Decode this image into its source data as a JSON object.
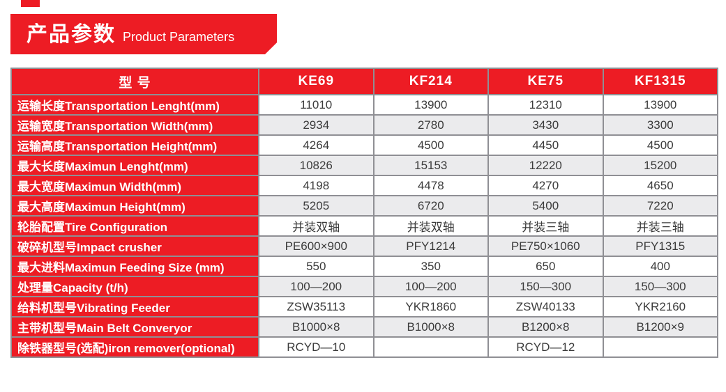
{
  "banner": {
    "title_zh": "产品参数",
    "title_en": "Product Parameters"
  },
  "table": {
    "header": {
      "model_label": "型 号",
      "columns": [
        "KE69",
        "KF214",
        "KE75",
        "KF1315"
      ]
    },
    "rows": [
      {
        "label": "运输长度Transportation Lenght(mm)",
        "values": [
          "11010",
          "13900",
          "12310",
          "13900"
        ]
      },
      {
        "label": "运输宽度Transportation Width(mm)",
        "values": [
          "2934",
          "2780",
          "3430",
          "3300"
        ]
      },
      {
        "label": "运输高度Transportation Height(mm)",
        "values": [
          "4264",
          "4500",
          "4450",
          "4500"
        ]
      },
      {
        "label": "最大长度Maximun Lenght(mm)",
        "values": [
          "10826",
          "15153",
          "12220",
          "15200"
        ]
      },
      {
        "label": "最大宽度Maximun Width(mm)",
        "values": [
          "4198",
          "4478",
          "4270",
          "4650"
        ]
      },
      {
        "label": "最大高度Maximun Height(mm)",
        "values": [
          "5205",
          "6720",
          "5400",
          "7220"
        ]
      },
      {
        "label": "轮胎配置Tire Configuration",
        "values": [
          "并装双轴",
          "并装双轴",
          "并装三轴",
          "并装三轴"
        ]
      },
      {
        "label": "破碎机型号Impact crusher",
        "values": [
          "PE600×900",
          "PFY1214",
          "PE750×1060",
          "PFY1315"
        ]
      },
      {
        "label": "最大进料Maximun Feeding Size (mm)",
        "values": [
          "550",
          "350",
          "650",
          "400"
        ]
      },
      {
        "label": "处理量Capacity (t/h)",
        "values": [
          "100—200",
          "100—200",
          "150—300",
          "150—300"
        ]
      },
      {
        "label": "给料机型号Vibrating Feeder",
        "values": [
          "ZSW35113",
          "YKR1860",
          "ZSW40133",
          "YKR2160"
        ]
      },
      {
        "label": "主带机型号Main Belt Converyor",
        "values": [
          "B1000×8",
          "B1000×8",
          "B1200×8",
          "B1200×9"
        ]
      },
      {
        "label": "除铁器型号(选配)iron remover(optional)",
        "values": [
          "RCYD—10",
          "",
          "RCYD—12",
          ""
        ]
      }
    ]
  },
  "colors": {
    "accent_red": "#ED1C24",
    "row_alt": "#EBEBED",
    "border": "#8F8F94",
    "text_dark": "#3B3B3B"
  }
}
